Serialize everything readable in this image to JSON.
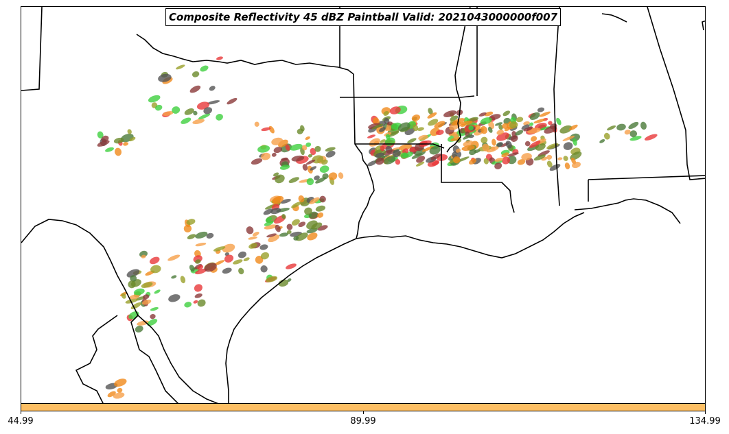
{
  "title": "Composite Reflectivity 45 dBZ Paintball Valid: 2021043000000f007",
  "colorbar": {
    "color": "#fdbf64",
    "ticks": [
      "44.99",
      "89.99",
      "134.99"
    ]
  },
  "colors": {
    "border": "#000000",
    "paint": [
      "#e8383a",
      "#f08a1c",
      "#f6a04a",
      "#8b3a3a",
      "#6a8a2a",
      "#9aa02a",
      "#3fcf3f",
      "#4b7a3a",
      "#555555"
    ]
  }
}
